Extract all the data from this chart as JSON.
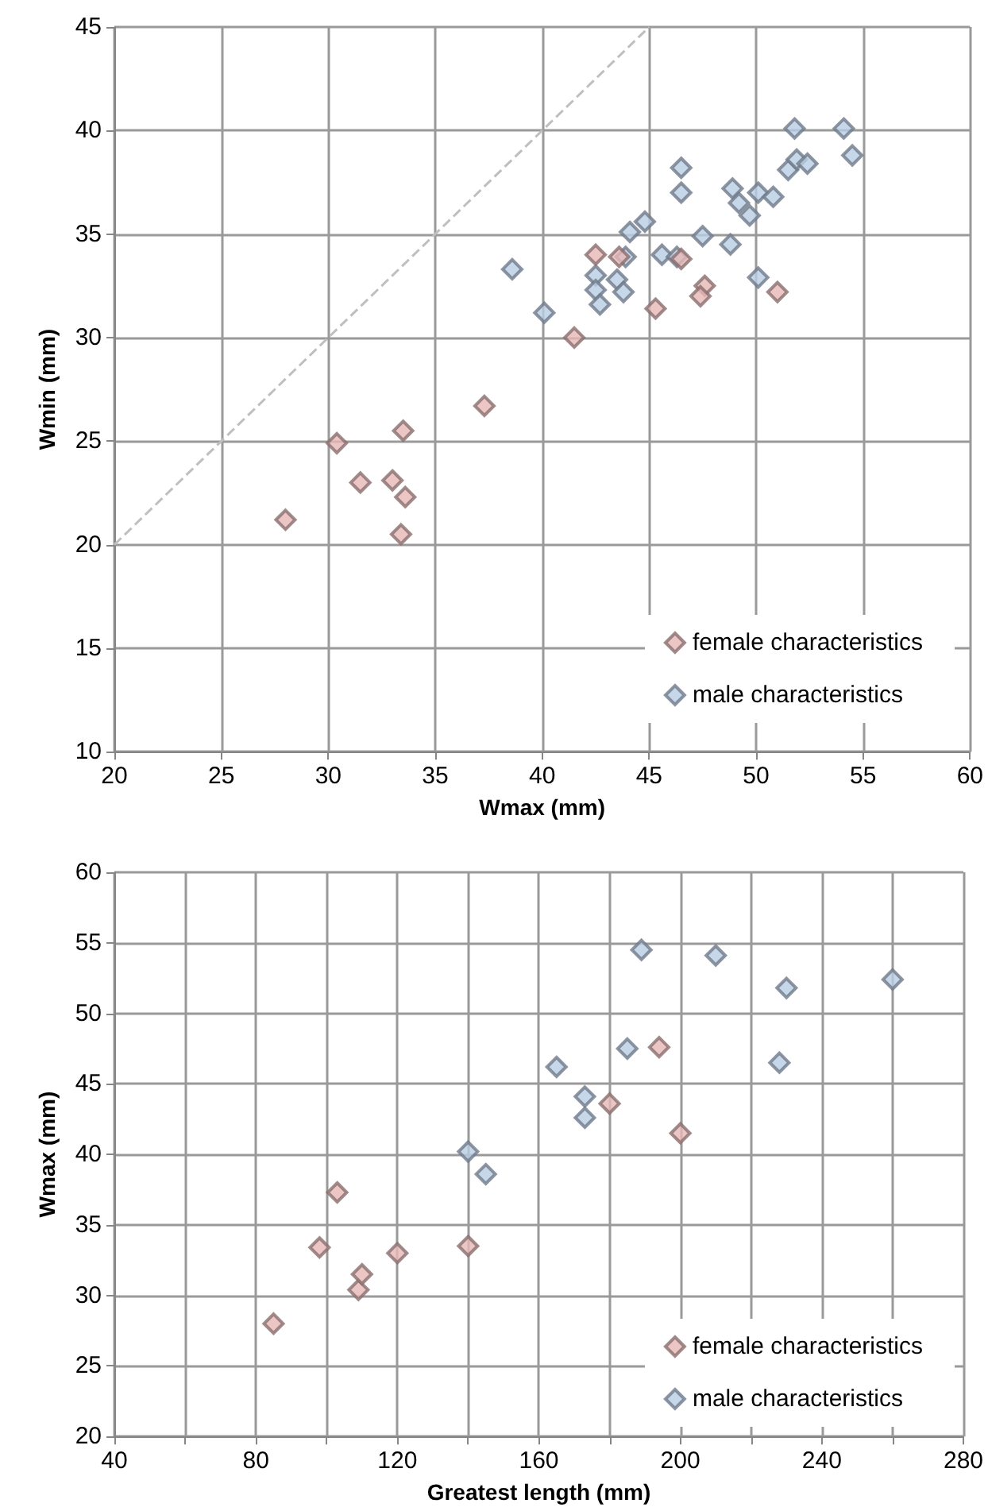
{
  "chart_data": [
    {
      "type": "scatter",
      "xlabel": "Wmax (mm)",
      "ylabel": "Wmin (mm)",
      "xlim": [
        20,
        60
      ],
      "xticks": [
        20,
        25,
        30,
        35,
        40,
        45,
        50,
        55,
        60
      ],
      "ylim": [
        10,
        45
      ],
      "yticks": [
        10,
        15,
        20,
        25,
        30,
        35,
        40,
        45
      ],
      "grid": true,
      "legend": "bottom right",
      "marker": "diamond",
      "series": [
        {
          "name": "female characteristics",
          "color": "#e6b8b7",
          "x": [
            28.0,
            30.4,
            31.5,
            33.0,
            33.6,
            33.4,
            33.5,
            37.3,
            41.5,
            42.5,
            43.6,
            46.5,
            45.3,
            47.6,
            47.4,
            51.0
          ],
          "values": [
            21.2,
            24.9,
            23.0,
            23.1,
            22.3,
            20.5,
            25.5,
            26.7,
            30.0,
            34.0,
            33.9,
            33.8,
            31.4,
            32.5,
            32.0,
            32.2
          ]
        },
        {
          "name": "male characteristics",
          "color": "#b9cde5",
          "x": [
            38.6,
            40.1,
            42.5,
            42.5,
            42.7,
            43.5,
            43.8,
            43.9,
            44.1,
            44.8,
            45.6,
            46.3,
            46.5,
            46.5,
            47.5,
            48.8,
            48.9,
            49.2,
            49.7,
            50.1,
            50.1,
            50.8,
            51.5,
            51.9,
            52.4,
            51.8,
            54.1,
            54.5
          ],
          "values": [
            33.3,
            31.2,
            33.0,
            32.3,
            31.6,
            32.8,
            32.2,
            33.9,
            35.1,
            35.6,
            34.0,
            33.9,
            38.2,
            37.0,
            34.9,
            34.5,
            37.2,
            36.5,
            35.9,
            37.0,
            32.9,
            36.8,
            38.1,
            38.6,
            38.4,
            40.1,
            40.1,
            38.8
          ]
        },
        {
          "type": "line",
          "color": "#bfbfbf",
          "line_style": "dashed",
          "marker": "none",
          "x": [
            20,
            45
          ],
          "values": [
            20,
            45
          ]
        }
      ]
    },
    {
      "type": "scatter",
      "xlabel": "Greatest length (mm)",
      "ylabel": "Wmax (mm)",
      "xlim": [
        40,
        280
      ],
      "xticks": [
        40,
        {
          "value": 60,
          "label": null
        },
        80,
        {
          "value": 100,
          "label": null
        },
        120,
        {
          "value": 140,
          "label": null
        },
        160,
        {
          "value": 180,
          "label": null
        },
        200,
        {
          "value": 220,
          "label": null
        },
        240,
        {
          "value": 260,
          "label": null
        },
        280
      ],
      "ylim": [
        20,
        60
      ],
      "yticks": [
        20,
        25,
        30,
        35,
        40,
        45,
        50,
        55,
        60
      ],
      "grid": true,
      "legend": "bottom right",
      "marker": "diamond",
      "series": [
        {
          "name": "female characteristics",
          "color": "#e6b8b7",
          "x": [
            85,
            98,
            103,
            109,
            110,
            120,
            140,
            194,
            180,
            200
          ],
          "values": [
            28.0,
            33.4,
            37.3,
            30.4,
            31.5,
            33.0,
            33.5,
            47.6,
            43.6,
            41.5
          ]
        },
        {
          "name": "male characteristics",
          "color": "#b9cde5",
          "x": [
            140,
            145,
            165,
            173,
            173,
            185,
            189,
            210,
            230,
            228,
            260
          ],
          "values": [
            40.2,
            38.6,
            46.2,
            44.1,
            42.6,
            47.5,
            54.5,
            54.1,
            51.8,
            46.5,
            52.4
          ]
        }
      ]
    }
  ]
}
